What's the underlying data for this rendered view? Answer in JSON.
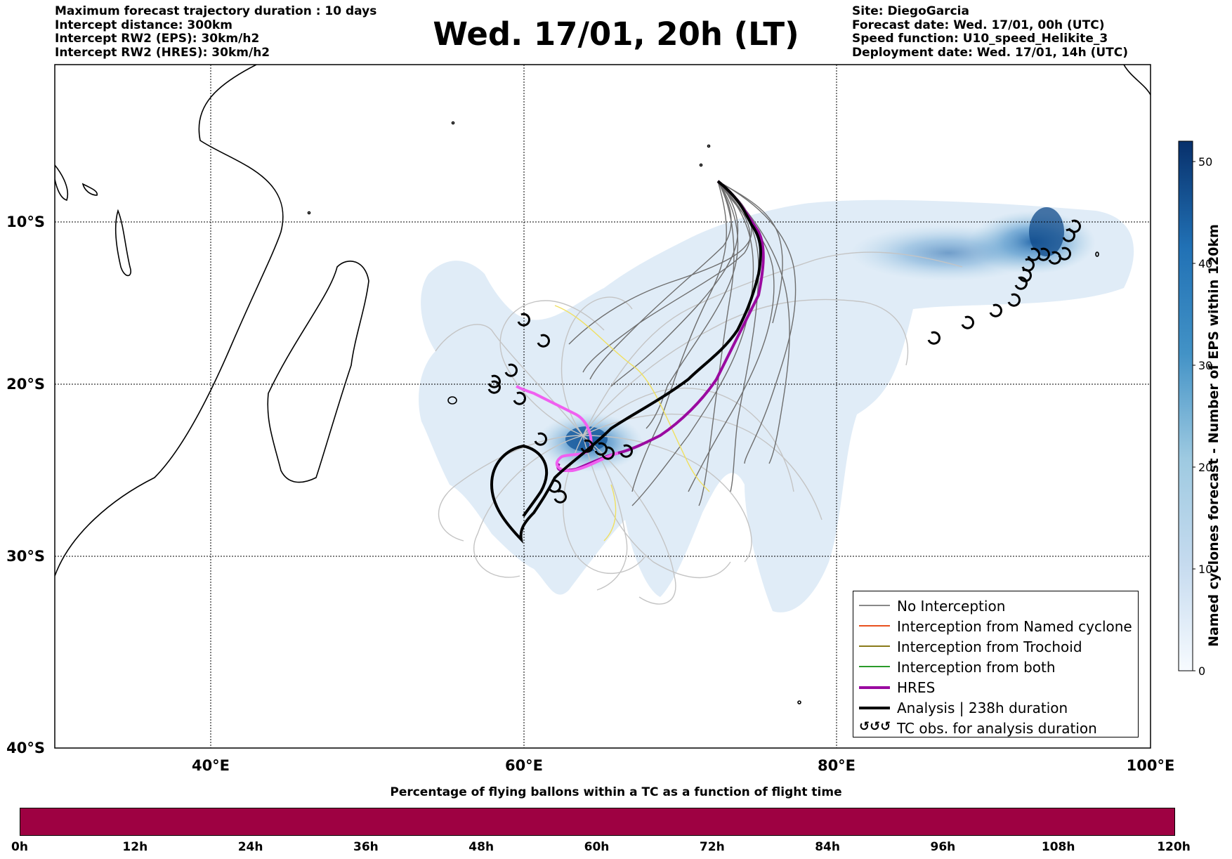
{
  "header": {
    "left_lines": [
      "Maximum forecast trajectory duration : 10 days",
      "Intercept distance: 300km",
      "Intercept RW2 (EPS):  30km/h2",
      "Intercept RW2 (HRES): 30km/h2"
    ],
    "title": "Wed. 17/01, 20h (LT)",
    "right_lines": [
      "Site: DiegoGarcia",
      "Forecast date: Wed. 17/01, 00h (UTC)",
      "Speed function: U10_speed_Helikite_3",
      "Deployment date: Wed. 17/01, 14h (UTC)"
    ]
  },
  "map": {
    "lon_labels": [
      "40°E",
      "60°E",
      "80°E",
      "100°E"
    ],
    "lat_labels": [
      "10°S",
      "20°S",
      "30°S",
      "40°S"
    ]
  },
  "colorbar": {
    "label": "Named cyclones forecast - Number of EPS within 120km",
    "ticks": [
      "0",
      "10",
      "20",
      "30",
      "40",
      "50"
    ],
    "range": [
      0,
      52
    ]
  },
  "legend": {
    "items": [
      {
        "label": "No Interception",
        "color": "#888888",
        "style": "thin"
      },
      {
        "label": "Interception from Named cyclone",
        "color": "#e8501e",
        "style": "thin"
      },
      {
        "label": "Interception from Trochoid",
        "color": "#8a7a1a",
        "style": "thin"
      },
      {
        "label": "Interception from both",
        "color": "#2a9a2a",
        "style": "thin"
      },
      {
        "label": "HRES",
        "color": "#9a0aa0",
        "style": "thick"
      },
      {
        "label": "Analysis | 238h duration",
        "color": "#000000",
        "style": "thick"
      },
      {
        "label": "TC obs. for analysis duration",
        "color": "#000000",
        "style": "symbol"
      }
    ]
  },
  "percentage_bar": {
    "title": "Percentage of flying ballons within a TC as a function of flight time",
    "tick_labels": [
      "0h",
      "12h",
      "24h",
      "36h",
      "48h",
      "60h",
      "72h",
      "84h",
      "96h",
      "108h",
      "120h"
    ],
    "fill_color": "#9e0142"
  },
  "colors": {
    "hres": "#9a0aa0",
    "hres_light": "#f060f0",
    "analysis": "#000000",
    "no_interception": "#6a6a6a"
  }
}
